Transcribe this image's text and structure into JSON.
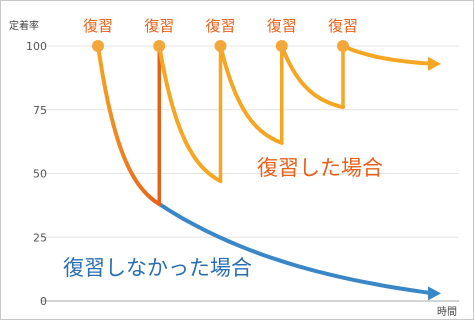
{
  "chart_data": {
    "type": "line",
    "ylabel": "定着率",
    "xlabel": "時間",
    "ylim": [
      0,
      100
    ],
    "y_ticks": [
      0,
      25,
      50,
      75,
      100
    ],
    "grid": true,
    "review_label": "復習",
    "review_count": 5,
    "colors": {
      "review_line": "#f5a623",
      "review_line_dark": "#e8611a",
      "no_review_line": "#3a87c8",
      "review_text": "#e8611a",
      "no_review_text": "#2a6eb3",
      "dot": "#f3a73a",
      "grid": "#e6e6e6",
      "axis_text": "#555555"
    },
    "series": [
      {
        "name": "復習した場合",
        "x": [
          0,
          1,
          1,
          2,
          2,
          3,
          3,
          4,
          4,
          5.6
        ],
        "y": [
          100,
          38,
          100,
          47,
          100,
          62,
          100,
          76,
          100,
          93
        ]
      },
      {
        "name": "復習しなかった場合",
        "x": [
          0,
          1,
          5.6
        ],
        "y": [
          100,
          38,
          3
        ]
      }
    ]
  }
}
